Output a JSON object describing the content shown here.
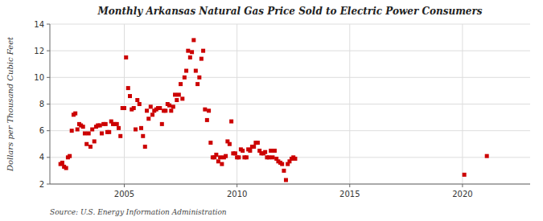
{
  "chart_data": {
    "type": "scatter",
    "title": "Monthly Arkansas Natural Gas Price Sold to Electric Power Consumers",
    "ylabel": "Dollars per Thousand Cubic Feet",
    "source": "Source: U.S. Energy Information Administration",
    "color": "#cc0000",
    "marker": "square",
    "grid": true,
    "xlim": [
      2001.7,
      2023.0
    ],
    "ylim": [
      2,
      14
    ],
    "xticks": [
      2005,
      2010,
      2015,
      2020
    ],
    "yticks": [
      2,
      4,
      6,
      8,
      10,
      12,
      14
    ],
    "x": [
      2002.17,
      2002.25,
      2002.33,
      2002.42,
      2002.5,
      2002.58,
      2002.67,
      2002.75,
      2002.83,
      2002.92,
      2003.0,
      2003.08,
      2003.17,
      2003.25,
      2003.33,
      2003.42,
      2003.5,
      2003.58,
      2003.67,
      2003.75,
      2003.83,
      2003.92,
      2004.0,
      2004.08,
      2004.17,
      2004.25,
      2004.33,
      2004.42,
      2004.5,
      2004.58,
      2004.67,
      2004.75,
      2004.83,
      2004.92,
      2005.0,
      2005.08,
      2005.17,
      2005.25,
      2005.33,
      2005.42,
      2005.5,
      2005.58,
      2005.67,
      2005.75,
      2005.83,
      2005.92,
      2006.0,
      2006.08,
      2006.17,
      2006.25,
      2006.33,
      2006.42,
      2006.5,
      2006.58,
      2006.67,
      2006.75,
      2006.83,
      2006.92,
      2007.0,
      2007.08,
      2007.17,
      2007.25,
      2007.33,
      2007.42,
      2007.5,
      2007.58,
      2007.67,
      2007.75,
      2007.83,
      2007.92,
      2008.0,
      2008.08,
      2008.17,
      2008.25,
      2008.33,
      2008.42,
      2008.5,
      2008.58,
      2008.67,
      2008.75,
      2008.83,
      2008.92,
      2009.0,
      2009.08,
      2009.17,
      2009.25,
      2009.33,
      2009.42,
      2009.5,
      2009.58,
      2009.67,
      2009.75,
      2009.83,
      2009.92,
      2010.0,
      2010.08,
      2010.17,
      2010.25,
      2010.33,
      2010.42,
      2010.5,
      2010.58,
      2010.67,
      2010.75,
      2010.83,
      2010.92,
      2011.0,
      2011.08,
      2011.17,
      2011.25,
      2011.33,
      2011.42,
      2011.5,
      2011.58,
      2011.67,
      2011.75,
      2011.83,
      2011.92,
      2012.0,
      2012.08,
      2012.17,
      2012.25,
      2012.33,
      2012.42,
      2012.5,
      2012.58,
      2020.08,
      2021.08
    ],
    "values": [
      3.5,
      3.6,
      3.3,
      3.2,
      4.0,
      4.1,
      6.0,
      7.2,
      7.3,
      6.1,
      6.5,
      6.4,
      6.3,
      5.8,
      5.0,
      5.8,
      4.8,
      6.1,
      5.2,
      6.3,
      6.4,
      6.4,
      5.8,
      6.5,
      6.5,
      5.9,
      5.9,
      6.7,
      6.5,
      6.5,
      6.5,
      6.2,
      5.6,
      7.7,
      7.7,
      11.5,
      9.2,
      8.6,
      7.6,
      7.7,
      6.1,
      8.3,
      8.0,
      6.2,
      5.6,
      4.8,
      7.5,
      6.9,
      7.8,
      7.2,
      7.5,
      7.6,
      7.7,
      7.7,
      6.5,
      7.5,
      7.5,
      8.0,
      7.9,
      7.5,
      7.8,
      8.7,
      8.3,
      8.7,
      9.5,
      8.4,
      10.0,
      10.5,
      12.0,
      11.5,
      11.9,
      12.8,
      10.5,
      9.5,
      10.0,
      11.4,
      12.0,
      7.6,
      6.8,
      7.5,
      5.1,
      4.0,
      4.0,
      4.2,
      3.7,
      4.0,
      3.5,
      4.0,
      4.1,
      5.2,
      5.0,
      6.7,
      4.3,
      4.3,
      4.0,
      4.0,
      4.6,
      4.5,
      4.0,
      4.0,
      4.6,
      4.5,
      4.8,
      4.8,
      5.1,
      5.1,
      4.5,
      4.3,
      4.3,
      4.4,
      4.0,
      4.0,
      4.5,
      4.0,
      4.5,
      3.9,
      3.7,
      3.6,
      3.5,
      3.0,
      2.3,
      3.5,
      3.7,
      3.9,
      4.0,
      3.9,
      2.7,
      4.1
    ]
  }
}
